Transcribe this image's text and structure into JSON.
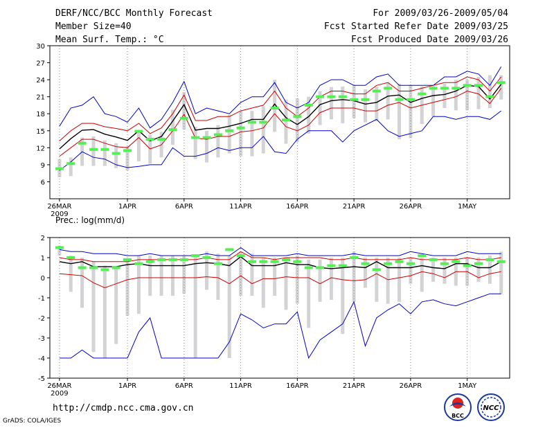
{
  "header": {
    "title": "DERF/NCC/BCC Monthly Forecast",
    "member_size": "Member Size=40",
    "variable": "Mean Surf. Temp.: °C",
    "period": "For 2009/03/26-2009/05/04",
    "refer_date": "Fcst Started Refer Date 2009/03/25",
    "produced_date": "Fcst Produced Date 2009/03/26"
  },
  "footer": {
    "url": "http://cmdp.ncc.cma.gov.cn",
    "credit": "GrADS: COLA/IGES",
    "logo_bcc_label": "BCC",
    "logo_ncc_label": "NCC"
  },
  "colors": {
    "envelope": "#0000cc",
    "spread": "#cc0000",
    "mean": "#000000",
    "obs_marker": "#55ee55",
    "box": "#d3d3d5"
  },
  "chart_data": [
    {
      "type": "line",
      "title": "Mean Surf. Temp.: °C",
      "xlabel": "",
      "ylabel": "",
      "x_tick_labels": [
        "26MAR",
        "1APR",
        "6APR",
        "11APR",
        "16APR",
        "21APR",
        "26APR",
        "1MAY"
      ],
      "x_tick_days": [
        0,
        6,
        11,
        16,
        21,
        26,
        31,
        36
      ],
      "x_year_label": "2009",
      "ylim": [
        3,
        30
      ],
      "y_ticks": [
        6,
        9,
        12,
        15,
        18,
        21,
        24,
        27,
        30
      ],
      "series": [
        {
          "name": "max",
          "color": "#0000cc",
          "values": [
            15.8,
            19,
            19.5,
            21,
            18,
            17.5,
            16.5,
            19,
            15.5,
            17,
            20,
            23.7,
            18,
            19,
            18.5,
            18,
            20,
            21,
            21,
            23.5,
            20,
            19,
            20,
            23,
            24,
            24,
            23,
            23,
            24.5,
            25,
            23,
            23,
            23,
            23,
            24.5,
            24.5,
            25.5,
            25,
            23,
            26.3
          ]
        },
        {
          "name": "mean+sd",
          "color": "#cc0000",
          "values": [
            13.2,
            15,
            16.3,
            16.3,
            15.7,
            15.4,
            15,
            16.3,
            14.5,
            15.5,
            18,
            21.3,
            16.8,
            16.8,
            17.5,
            17.5,
            18.5,
            19,
            19.5,
            22,
            19,
            17.5,
            19,
            21,
            22,
            22,
            21.5,
            21.5,
            23,
            23.5,
            22,
            22,
            22.5,
            23,
            23.5,
            23.5,
            24.5,
            24,
            22,
            24.5
          ]
        },
        {
          "name": "mean",
          "color": "#000000",
          "values": [
            11.8,
            13.6,
            15.1,
            15.2,
            14.4,
            13.9,
            13.3,
            15,
            13.2,
            14,
            16.7,
            19.6,
            15.1,
            15.4,
            15.4,
            15.8,
            16.3,
            17,
            17,
            19.7,
            17.3,
            16.1,
            17.5,
            19.6,
            20.3,
            20.5,
            20.3,
            19.7,
            20,
            21.1,
            21.3,
            20,
            20.7,
            21.2,
            21.4,
            22,
            23,
            22.8,
            20.6,
            23.2
          ]
        },
        {
          "name": "mean-sd",
          "color": "#cc0000",
          "values": [
            10.5,
            12,
            13.5,
            13.5,
            12.8,
            12.2,
            12,
            13.8,
            11.8,
            12.5,
            15,
            17.9,
            13.7,
            13.5,
            14,
            14,
            14.8,
            15,
            15.5,
            18,
            15.7,
            15,
            16,
            18.2,
            19,
            19,
            19,
            18.5,
            18.5,
            19.5,
            20,
            19,
            19.5,
            20,
            20.5,
            21,
            22,
            21.5,
            19.8,
            22.5
          ]
        },
        {
          "name": "min",
          "color": "#0000cc",
          "values": [
            8,
            9.5,
            11.3,
            10.3,
            10,
            9,
            8.5,
            8.7,
            9,
            9,
            12,
            10.5,
            10.5,
            11,
            12,
            11.5,
            12,
            12,
            14,
            11.3,
            11,
            13.5,
            15,
            15,
            15,
            13,
            15,
            16,
            17,
            15,
            14,
            14.5,
            15,
            17.5,
            17.5,
            17,
            17.5,
            17.5,
            17,
            18.5
          ]
        }
      ],
      "box_ranges": [
        [
          6.8,
          10
        ],
        [
          7,
          10.3
        ],
        [
          8.8,
          13.8
        ],
        [
          8.8,
          14
        ],
        [
          8.8,
          13.3
        ],
        [
          8.4,
          12.8
        ],
        [
          8,
          12.3
        ],
        [
          9.6,
          15.1
        ],
        [
          9.2,
          14.3
        ],
        [
          10.3,
          14.8
        ],
        [
          12.5,
          18.7
        ],
        [
          15.2,
          21.8
        ],
        [
          10,
          15.7
        ],
        [
          9.4,
          15
        ],
        [
          10.3,
          16
        ],
        [
          11,
          17.8
        ],
        [
          10.5,
          18.5
        ],
        [
          10.5,
          18.5
        ],
        [
          11,
          19.3
        ],
        [
          14.8,
          24
        ],
        [
          12.7,
          20.5
        ],
        [
          13,
          20.7
        ],
        [
          14.5,
          21
        ],
        [
          16,
          22
        ],
        [
          17,
          22.7
        ],
        [
          16.3,
          22.8
        ],
        [
          17.2,
          23
        ],
        [
          16.5,
          22.3
        ],
        [
          16.7,
          22.8
        ],
        [
          17,
          23.5
        ],
        [
          13.5,
          23.3
        ],
        [
          13.7,
          23
        ],
        [
          16.2,
          22.8
        ],
        [
          17.5,
          22.9
        ],
        [
          19,
          23.3
        ],
        [
          18.6,
          24
        ],
        [
          18.6,
          24
        ],
        [
          18.8,
          24.5
        ],
        [
          19,
          24.8
        ],
        [
          20.5,
          24.8
        ]
      ],
      "observed": [
        8.3,
        9.2,
        12.8,
        11.7,
        11.7,
        11,
        11.5,
        14.9,
        13.5,
        13.5,
        15.2,
        17.2,
        13.8,
        13.8,
        14.3,
        15,
        15.5,
        16.5,
        16.5,
        19,
        16.9,
        17.5,
        19.5,
        21,
        21,
        21,
        20.5,
        20.5,
        22,
        22.5,
        20.5,
        20.5,
        21.5,
        22.5,
        22.5,
        22.5,
        23,
        23,
        21,
        23.5
      ]
    },
    {
      "type": "line",
      "title": "Prec.: log(mm/d)",
      "xlabel": "",
      "ylabel": "",
      "x_tick_labels": [
        "26MAR",
        "1APR",
        "6APR",
        "11APR",
        "16APR",
        "21APR",
        "26APR",
        "1MAY"
      ],
      "x_tick_days": [
        0,
        6,
        11,
        16,
        21,
        26,
        31,
        36
      ],
      "x_year_label": "2009",
      "ylim": [
        -5,
        2
      ],
      "y_ticks": [
        -5,
        -4,
        -3,
        -2,
        -1,
        0,
        1,
        2
      ],
      "series": [
        {
          "name": "max",
          "color": "#0000cc",
          "values": [
            1.4,
            1.3,
            1.3,
            1.2,
            1.2,
            1.2,
            1.1,
            1.1,
            1.2,
            1.1,
            1.1,
            1.1,
            1.1,
            1.2,
            1.1,
            1.1,
            1.5,
            1.1,
            1.1,
            1.1,
            1.1,
            1.2,
            1.1,
            1.1,
            1.1,
            1.1,
            1.2,
            1.1,
            1.1,
            1.1,
            1.1,
            1.3,
            1.2,
            1.1,
            1.1,
            1.1,
            1.3,
            1.2,
            1.2,
            1.2
          ]
        },
        {
          "name": "mean+sd",
          "color": "#cc0000",
          "values": [
            1,
            0.9,
            0.9,
            0.8,
            0.8,
            0.8,
            0.8,
            0.9,
            0.9,
            0.9,
            0.9,
            0.9,
            0.9,
            1,
            0.9,
            0.9,
            1.3,
            1,
            1,
            0.9,
            1,
            1,
            1,
            1,
            0.9,
            0.9,
            1,
            0.9,
            0.9,
            0.9,
            0.9,
            1,
            0.9,
            0.9,
            0.9,
            0.9,
            1,
            0.9,
            0.9,
            1
          ]
        },
        {
          "name": "mean",
          "color": "#000000",
          "values": [
            0.8,
            0.7,
            0.8,
            0.55,
            0.55,
            0.55,
            0.65,
            0.7,
            0.6,
            0.6,
            0.6,
            0.6,
            0.7,
            0.75,
            0.7,
            0.6,
            1.05,
            0.6,
            0.6,
            0.6,
            0.75,
            0.65,
            0.65,
            0.5,
            0.45,
            0.5,
            0.55,
            0.5,
            0.8,
            0.5,
            0.5,
            0.5,
            0.6,
            0.5,
            0.45,
            0.7,
            0.7,
            0.5,
            0.5,
            0.8
          ]
        },
        {
          "name": "mean-sd",
          "color": "#cc0000",
          "values": [
            0.2,
            0.15,
            0.1,
            -0.25,
            -0.5,
            -0.3,
            -0.1,
            0,
            0,
            0,
            0,
            0,
            0,
            0.05,
            0,
            -0.3,
            0.1,
            -0.3,
            -0.05,
            -0.05,
            0.05,
            0,
            0,
            -0.3,
            0,
            -0.1,
            -0.15,
            -0.1,
            0.2,
            -0.1,
            0,
            0.1,
            0.3,
            0.2,
            0,
            0.3,
            0.3,
            0,
            0.2,
            0.3
          ]
        },
        {
          "name": "min",
          "color": "#0000cc",
          "values": [
            -4,
            -4,
            -3.6,
            -4,
            -4,
            -4,
            -4,
            -2.7,
            -2,
            -4,
            -4,
            -4,
            -4,
            -4,
            -4,
            -3.2,
            -1.8,
            -2.1,
            -2.5,
            -2.3,
            -2.3,
            -1.7,
            -4,
            -3.1,
            -2.7,
            -2.3,
            -1.2,
            -3.4,
            -2,
            -1.6,
            -1.3,
            -1.8,
            -1.2,
            -1.1,
            -1.3,
            -1.4,
            -1.2,
            -1,
            -0.8,
            -0.8
          ]
        }
      ],
      "box_ranges": [
        [
          1.1,
          1.6
        ],
        [
          -0.7,
          1.1
        ],
        [
          -1.5,
          1
        ],
        [
          -3.7,
          0.8
        ],
        [
          -4,
          0.6
        ],
        [
          -3.3,
          0.5
        ],
        [
          -1.9,
          0.8
        ],
        [
          -1.8,
          1.1
        ],
        [
          -0.9,
          1.1
        ],
        [
          -0.9,
          1.1
        ],
        [
          -0.9,
          1.1
        ],
        [
          -0.8,
          1.1
        ],
        [
          -4,
          1.1
        ],
        [
          -0.6,
          1.3
        ],
        [
          -1.1,
          1.2
        ],
        [
          -4,
          1.1
        ],
        [
          -0.9,
          1.3
        ],
        [
          -0.9,
          1.2
        ],
        [
          -1.5,
          1
        ],
        [
          -0.9,
          1
        ],
        [
          -1.6,
          1
        ],
        [
          -1.3,
          1.1
        ],
        [
          -2.5,
          0.9
        ],
        [
          -1.2,
          0.9
        ],
        [
          -1.1,
          1
        ],
        [
          -2.8,
          1
        ],
        [
          -1.2,
          1.3
        ],
        [
          -0.5,
          1
        ],
        [
          -1.2,
          1
        ],
        [
          -1.3,
          1
        ],
        [
          -1.2,
          1
        ],
        [
          -0.3,
          1
        ],
        [
          -0.7,
          1
        ],
        [
          -0.2,
          1
        ],
        [
          -0.3,
          1
        ],
        [
          -0.4,
          1
        ],
        [
          -0.4,
          1
        ],
        [
          -0.2,
          1
        ],
        [
          -0.3,
          1.1
        ],
        [
          -0.8,
          1.3
        ]
      ],
      "observed": [
        1.5,
        1,
        0.5,
        0.5,
        0.4,
        0.5,
        0.9,
        0.7,
        0.8,
        0.9,
        0.9,
        0.9,
        1.1,
        1,
        0.7,
        1.4,
        1.1,
        0.8,
        0.8,
        0.8,
        0.9,
        0.8,
        0.5,
        0.5,
        0.6,
        0.6,
        1,
        0.7,
        0.4,
        0.7,
        0.8,
        0.7,
        1.1,
        0.9,
        0.7,
        0.8,
        0.6,
        0.7,
        0.9,
        0.8
      ]
    }
  ]
}
